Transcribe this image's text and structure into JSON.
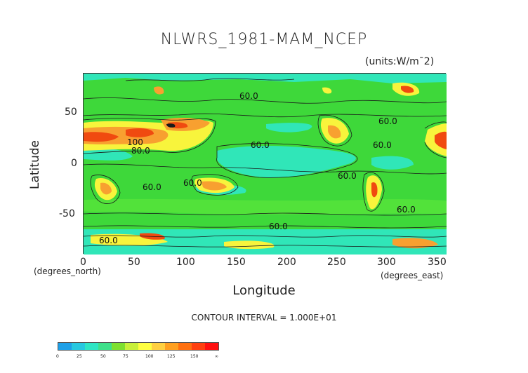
{
  "title": "NLWRS_1981-MAM_NCEP",
  "units": "(units:W/m^2)",
  "map": {
    "xlabel": "Longitude",
    "ylabel": "Latitude",
    "x_unit_label": "(degrees_east)",
    "y_unit_label": "(degrees_north)",
    "x_ticks": [
      "0",
      "50",
      "100",
      "150",
      "200",
      "250",
      "300",
      "350"
    ],
    "y_ticks": [
      "50",
      "0",
      "-50"
    ],
    "contour_labels": [
      "60.0",
      "60.0",
      "60.0",
      "60.0",
      "60.0",
      "60.0",
      "60.0",
      "60.0",
      "60.0",
      "80.0",
      "100",
      "60.0"
    ],
    "contour_interval": "CONTOUR INTERVAL = 1.000E+01"
  },
  "colorbar": {
    "colors": [
      "#1ea0e8",
      "#27c8e0",
      "#2ee6c4",
      "#3ee08a",
      "#7ee030",
      "#c8f03a",
      "#ffff40",
      "#ffd040",
      "#ffa020",
      "#ff7010",
      "#ff4010",
      "#ff1010"
    ],
    "ticks": [
      "0",
      "25",
      "50",
      "75",
      "100",
      "125",
      "150",
      "∞"
    ]
  },
  "colors": {
    "background_field": "#3ed83a",
    "cyan_field": "#30e6b8",
    "warm_yellow": "#f8f43c",
    "warm_orange": "#f8a030",
    "warm_red": "#f04a10"
  }
}
